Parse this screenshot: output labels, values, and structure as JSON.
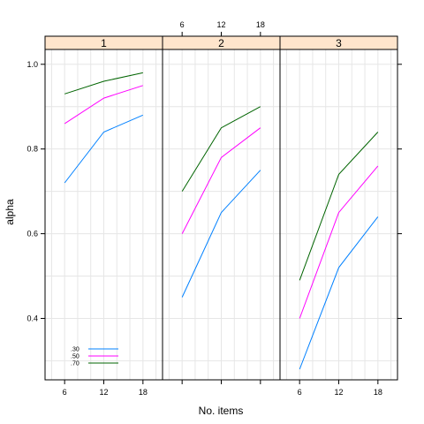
{
  "chart_data": {
    "type": "line",
    "xlabel": "No. items",
    "ylabel": "alpha",
    "x_ticks": [
      "6",
      "12",
      "18"
    ],
    "y_ticks": [
      "0.4",
      "0.6",
      "0.8",
      "1.0"
    ],
    "xlim": [
      3,
      21
    ],
    "ylim": [
      0.255,
      1.035
    ],
    "grid": true,
    "strip_color": "#ffe5cc",
    "legend": {
      "position": "bottom-left of panel 1",
      "entries": [
        {
          "label": ".30",
          "color": "#0080ff"
        },
        {
          "label": ".50",
          "color": "#ff00ff"
        },
        {
          "label": ".70",
          "color": "#006400"
        }
      ]
    },
    "x": [
      6,
      12,
      18
    ],
    "panels": [
      {
        "strip": "1",
        "series": [
          {
            "name": ".30",
            "color": "#0080ff",
            "values": [
              0.72,
              0.84,
              0.88
            ]
          },
          {
            "name": ".50",
            "color": "#ff00ff",
            "values": [
              0.86,
              0.92,
              0.95
            ]
          },
          {
            "name": ".70",
            "color": "#006400",
            "values": [
              0.93,
              0.96,
              0.98
            ]
          }
        ]
      },
      {
        "strip": "2",
        "series": [
          {
            "name": ".30",
            "color": "#0080ff",
            "values": [
              0.45,
              0.65,
              0.75
            ]
          },
          {
            "name": ".50",
            "color": "#ff00ff",
            "values": [
              0.6,
              0.78,
              0.85
            ]
          },
          {
            "name": ".70",
            "color": "#006400",
            "values": [
              0.7,
              0.85,
              0.9
            ]
          }
        ]
      },
      {
        "strip": "3",
        "series": [
          {
            "name": ".30",
            "color": "#0080ff",
            "values": [
              0.28,
              0.52,
              0.64
            ]
          },
          {
            "name": ".50",
            "color": "#ff00ff",
            "values": [
              0.4,
              0.65,
              0.76
            ]
          },
          {
            "name": ".70",
            "color": "#006400",
            "values": [
              0.49,
              0.74,
              0.84
            ]
          }
        ]
      }
    ]
  }
}
